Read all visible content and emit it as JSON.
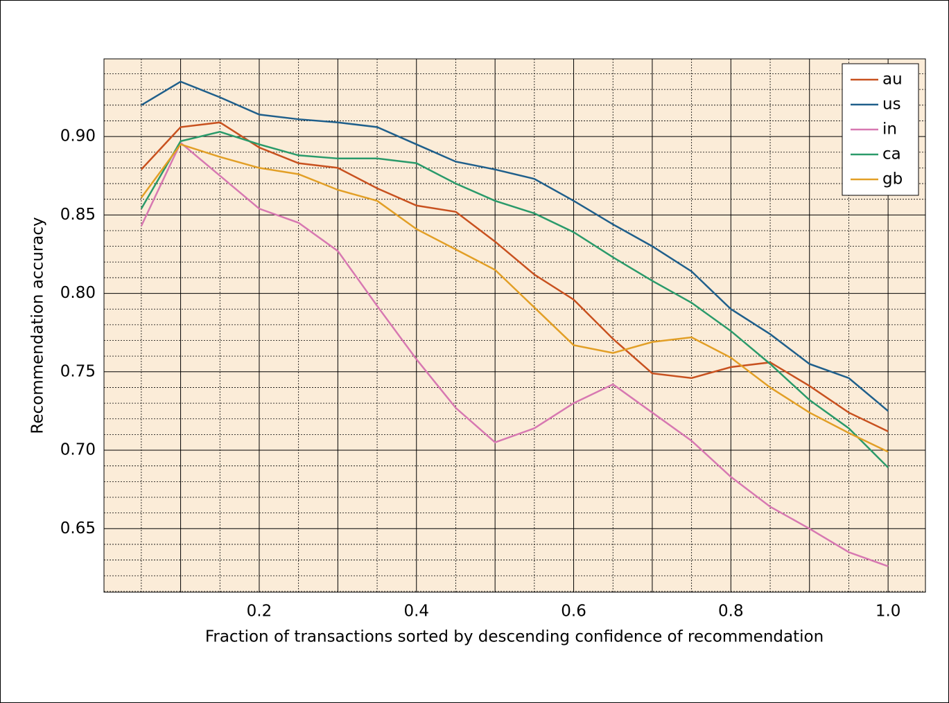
{
  "chart_data": {
    "type": "line",
    "x": [
      0.05,
      0.1,
      0.15,
      0.2,
      0.25,
      0.3,
      0.35,
      0.4,
      0.45,
      0.5,
      0.55,
      0.6,
      0.65,
      0.7,
      0.75,
      0.8,
      0.85,
      0.9,
      0.95,
      1.0
    ],
    "series": [
      {
        "name": "au",
        "color": "#c8511f",
        "values": [
          0.879,
          0.906,
          0.909,
          0.893,
          0.883,
          0.88,
          0.867,
          0.856,
          0.852,
          0.833,
          0.812,
          0.796,
          0.771,
          0.749,
          0.746,
          0.753,
          0.756,
          0.741,
          0.724,
          0.712
        ]
      },
      {
        "name": "us",
        "color": "#1f5f8b",
        "values": [
          0.92,
          0.935,
          0.925,
          0.914,
          0.911,
          0.909,
          0.906,
          0.895,
          0.884,
          0.879,
          0.873,
          0.859,
          0.844,
          0.83,
          0.814,
          0.79,
          0.774,
          0.755,
          0.746,
          0.725
        ]
      },
      {
        "name": "in",
        "color": "#d778b1",
        "values": [
          0.843,
          0.896,
          0.875,
          0.854,
          0.845,
          0.827,
          0.792,
          0.758,
          0.727,
          0.705,
          0.714,
          0.73,
          0.742,
          0.724,
          0.706,
          0.683,
          0.664,
          0.65,
          0.635,
          0.626
        ]
      },
      {
        "name": "ca",
        "color": "#2a9a6a",
        "values": [
          0.854,
          0.897,
          0.903,
          0.895,
          0.888,
          0.886,
          0.886,
          0.883,
          0.87,
          0.859,
          0.851,
          0.839,
          0.823,
          0.808,
          0.794,
          0.776,
          0.755,
          0.732,
          0.714,
          0.689
        ]
      },
      {
        "name": "gb",
        "color": "#e29f26",
        "values": [
          0.861,
          0.895,
          0.887,
          0.88,
          0.876,
          0.866,
          0.859,
          0.841,
          0.828,
          0.815,
          0.791,
          0.767,
          0.762,
          0.769,
          0.772,
          0.759,
          0.74,
          0.724,
          0.711,
          0.699
        ]
      }
    ],
    "xlabel": "Fraction of transactions sorted by descending confidence of recommendation",
    "ylabel": "Recommendation accuracy",
    "xlim": [
      0.0025,
      1.0475
    ],
    "ylim": [
      0.6095,
      0.9495
    ],
    "xticks": [
      0.2,
      0.4,
      0.6,
      0.8,
      {
        "value": 1.0,
        "label": "1.0"
      }
    ],
    "yticks": [
      {
        "value": 0.65,
        "label": "0.65"
      },
      {
        "value": 0.7,
        "label": "0.70"
      },
      {
        "value": 0.75,
        "label": "0.75"
      },
      {
        "value": 0.8,
        "label": "0.80"
      },
      {
        "value": 0.85,
        "label": "0.85"
      },
      {
        "value": 0.9,
        "label": "0.90"
      }
    ],
    "xminor_ticks": [
      0.05,
      0.1,
      0.15,
      0.25,
      0.3,
      0.35,
      0.45,
      0.5,
      0.55,
      0.65,
      0.7,
      0.75,
      0.85,
      0.9,
      0.95
    ],
    "yminor_ticks": [
      0.61,
      0.62,
      0.63,
      0.64,
      0.66,
      0.67,
      0.68,
      0.69,
      0.71,
      0.72,
      0.73,
      0.74,
      0.76,
      0.77,
      0.78,
      0.79,
      0.81,
      0.82,
      0.83,
      0.84,
      0.86,
      0.87,
      0.88,
      0.89,
      0.91,
      0.92,
      0.93,
      0.94
    ],
    "grid": true,
    "background": "#fbecd8",
    "legend": "upper right"
  }
}
